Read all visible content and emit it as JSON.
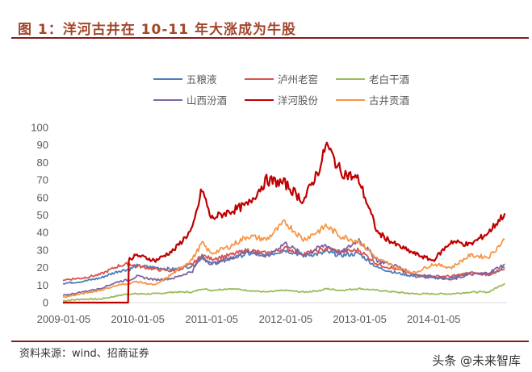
{
  "figure": {
    "title": "图 1：洋河古井在 10-11 年大涨成为牛股",
    "source": "资料来源：wind、招商证券",
    "watermark": "头条 @未来智库"
  },
  "chart_data": {
    "type": "line",
    "title": "洋河古井在 10-11 年大涨成为牛股",
    "xlabel": "",
    "ylabel": "",
    "ylim": [
      0,
      100
    ],
    "yticks": [
      0,
      10,
      20,
      30,
      40,
      50,
      60,
      70,
      80,
      90,
      100
    ],
    "xticks": [
      "2009-01-05",
      "2010-01-05",
      "2011-01-05",
      "2012-01-05",
      "2013-01-05",
      "2014-01-05"
    ],
    "x_range": [
      "2009-01-05",
      "2014-12-31"
    ],
    "grid": false,
    "legend_position": "top",
    "x": [
      2009.0,
      2009.25,
      2009.5,
      2009.75,
      2009.88,
      2009.9,
      2010.0,
      2010.25,
      2010.5,
      2010.75,
      2010.88,
      2011.0,
      2011.25,
      2011.5,
      2011.75,
      2012.0,
      2012.25,
      2012.5,
      2012.55,
      2012.75,
      2013.0,
      2013.25,
      2013.5,
      2013.75,
      2014.0,
      2014.25,
      2014.5,
      2014.75,
      2014.97
    ],
    "series": [
      {
        "name": "五粮液",
        "color": "#4a7ebb",
        "values": [
          11,
          12,
          14,
          18,
          19,
          19,
          21,
          20,
          19,
          21,
          26,
          22,
          25,
          28,
          27,
          30,
          27,
          28,
          29,
          27,
          28,
          20,
          17,
          15,
          14,
          14,
          17,
          16,
          20
        ]
      },
      {
        "name": "泸州老窖",
        "color": "#d9534f",
        "values": [
          13,
          14,
          16,
          21,
          22,
          22,
          21,
          19,
          18,
          22,
          27,
          25,
          27,
          30,
          28,
          31,
          28,
          30,
          31,
          29,
          30,
          22,
          19,
          16,
          15,
          15,
          17,
          16,
          19
        ]
      },
      {
        "name": "老白干酒",
        "color": "#9bbb59",
        "values": [
          1,
          2,
          2,
          4,
          5,
          5,
          5,
          5,
          6,
          6,
          8,
          7,
          8,
          7,
          6,
          7,
          6,
          7,
          8,
          7,
          8,
          7,
          6,
          5,
          5,
          5,
          6,
          6,
          11
        ]
      },
      {
        "name": "山西汾酒",
        "color": "#8064a2",
        "values": [
          4,
          6,
          8,
          12,
          13,
          13,
          15,
          13,
          14,
          18,
          27,
          22,
          25,
          30,
          26,
          34,
          27,
          32,
          33,
          28,
          36,
          24,
          21,
          16,
          15,
          13,
          16,
          17,
          22
        ]
      },
      {
        "name": "洋河股份",
        "color": "#c00000",
        "values": [
          0,
          0,
          0,
          0,
          0,
          25,
          27,
          24,
          30,
          42,
          65,
          48,
          52,
          56,
          70,
          68,
          58,
          80,
          91,
          75,
          70,
          40,
          33,
          28,
          24,
          35,
          33,
          40,
          51
        ]
      },
      {
        "name": "古井贡酒",
        "color": "#f79646",
        "values": [
          3,
          5,
          7,
          10,
          11,
          11,
          12,
          10,
          17,
          25,
          34,
          28,
          32,
          38,
          36,
          46,
          36,
          42,
          44,
          38,
          35,
          25,
          20,
          17,
          22,
          20,
          27,
          26,
          36
        ]
      }
    ]
  }
}
